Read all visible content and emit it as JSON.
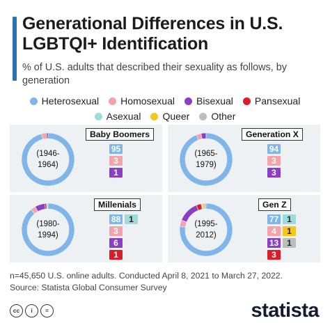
{
  "header": {
    "title": "Generational Differences in U.S. LGBTQI+ Identification",
    "subtitle": "% of U.S. adults that described their sexuality as follows, by generation"
  },
  "colors": {
    "accent": "#2a72b8",
    "panel_bg": "#eef1f4"
  },
  "chart_data": {
    "type": "pie",
    "variant": "donut",
    "legend_position": "top",
    "categories": [
      {
        "key": "heterosexual",
        "name": "Heterosexual",
        "color": "#7fb5e8"
      },
      {
        "key": "homosexual",
        "name": "Homosexual",
        "color": "#f4a3ad"
      },
      {
        "key": "bisexual",
        "name": "Bisexual",
        "color": "#8b3fc5"
      },
      {
        "key": "pansexual",
        "name": "Pansexual",
        "color": "#d91e2a"
      },
      {
        "key": "asexual",
        "name": "Asexual",
        "color": "#9fdbdb"
      },
      {
        "key": "queer",
        "name": "Queer",
        "color": "#f4c61f"
      },
      {
        "key": "other",
        "name": "Other",
        "color": "#bdbdbd"
      }
    ],
    "charts": [
      {
        "label": "Baby Boomers",
        "years": [
          "(1946-",
          "1964)"
        ],
        "values": {
          "heterosexual": 95,
          "homosexual": 3,
          "bisexual": 1
        },
        "labels": [
          [
            {
              "key": "heterosexual",
              "value": 95
            }
          ],
          [
            {
              "key": "homosexual",
              "value": 3
            }
          ],
          [
            {
              "key": "bisexual",
              "value": 1
            }
          ]
        ]
      },
      {
        "label": "Generation X",
        "years": [
          "(1965-",
          "1979)"
        ],
        "values": {
          "heterosexual": 94,
          "homosexual": 3,
          "bisexual": 3
        },
        "labels": [
          [
            {
              "key": "heterosexual",
              "value": 94
            }
          ],
          [
            {
              "key": "homosexual",
              "value": 3
            }
          ],
          [
            {
              "key": "bisexual",
              "value": 3
            }
          ]
        ]
      },
      {
        "label": "Millenials",
        "years": [
          "(1980-",
          "1994)"
        ],
        "values": {
          "heterosexual": 88,
          "asexual": 1,
          "homosexual": 3,
          "bisexual": 6,
          "pansexual": 1
        },
        "labels": [
          [
            {
              "key": "heterosexual",
              "value": 88
            },
            {
              "key": "asexual",
              "value": 1
            }
          ],
          [
            {
              "key": "homosexual",
              "value": 3
            }
          ],
          [
            {
              "key": "bisexual",
              "value": 6
            }
          ],
          [
            {
              "key": "pansexual",
              "value": 1
            }
          ]
        ]
      },
      {
        "label": "Gen Z",
        "years": [
          "(1995-",
          "2012)"
        ],
        "values": {
          "heterosexual": 77,
          "asexual": 1,
          "homosexual": 4,
          "queer": 1,
          "bisexual": 13,
          "other": 1,
          "pansexual": 3
        },
        "labels": [
          [
            {
              "key": "heterosexual",
              "value": 77
            },
            {
              "key": "asexual",
              "value": 1
            }
          ],
          [
            {
              "key": "homosexual",
              "value": 4
            },
            {
              "key": "queer",
              "value": 1
            }
          ],
          [
            {
              "key": "bisexual",
              "value": 13
            },
            {
              "key": "other",
              "value": 1
            }
          ],
          [
            {
              "key": "pansexual",
              "value": 3
            }
          ]
        ]
      }
    ]
  },
  "footer": {
    "note": "n=45,650 U.S. online adults. Conducted April 8, 2021 to March 27, 2022.",
    "source": "Source: Statista Global Consumer Survey",
    "license_icons": [
      {
        "name": "cc-icon",
        "text": "cc"
      },
      {
        "name": "attribution-icon",
        "text": "i"
      },
      {
        "name": "no-derivatives-icon",
        "text": "="
      }
    ],
    "brand": "statista"
  }
}
